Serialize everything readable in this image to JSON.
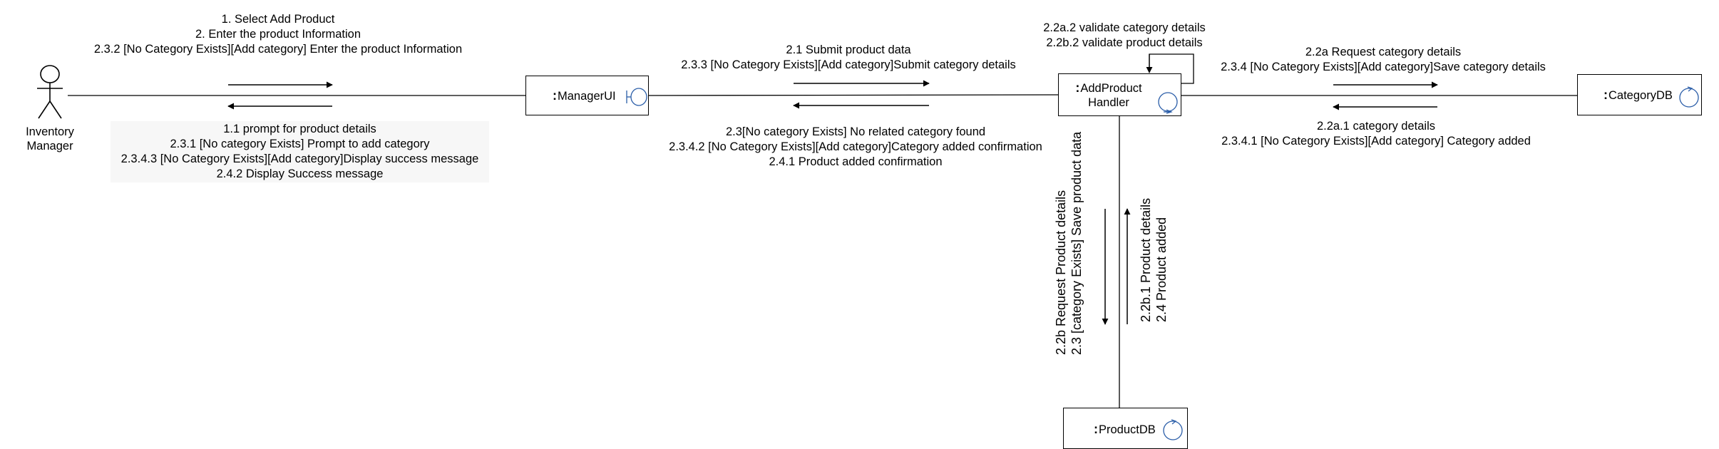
{
  "actor": {
    "name": "Inventory Manager"
  },
  "objects": {
    "manager_ui": {
      "prefix": ":",
      "name": "ManagerUI"
    },
    "add_product_handler": {
      "prefix": ":",
      "name": "AddProduct Handler"
    },
    "category_db": {
      "prefix": ":",
      "name": "CategoryDB"
    },
    "product_db": {
      "prefix": ":",
      "name": "ProductDB"
    }
  },
  "messages": {
    "actor_to_ui": [
      "1. Select Add Product",
      "2. Enter the product Information",
      "2.3.2 [No Category Exists][Add category] Enter the product Information"
    ],
    "ui_to_actor": [
      "1.1 prompt for product details",
      "2.3.1 [No category Exists]  Prompt to add category",
      "2.3.4.3 [No Category Exists][Add category]Display success message",
      "2.4.2 Display Success message"
    ],
    "ui_to_handler": [
      "2.1 Submit product data",
      "2.3.3 [No Category Exists][Add category]Submit category details"
    ],
    "handler_to_ui": [
      "2.3[No category Exists] No related category found",
      "2.3.4.2 [No Category Exists][Add category]Category added confirmation",
      "2.4.1 Product added confirmation"
    ],
    "self_loop": [
      "2.2a.2 validate category details",
      "2.2b.2 validate product details"
    ],
    "handler_to_category": [
      "2.2a Request category details",
      "2.3.4 [No Category Exists][Add category]Save category details"
    ],
    "category_to_handler": [
      "2.2a.1 category details",
      "2.3.4.1 [No Category Exists][Add category] Category added"
    ],
    "handler_to_product": [
      "2.2b Request Product details",
      "2.3 [category Exists] Save product data"
    ],
    "product_to_handler": [
      "2.2b.1 Product details",
      "2.4  Product added"
    ]
  }
}
